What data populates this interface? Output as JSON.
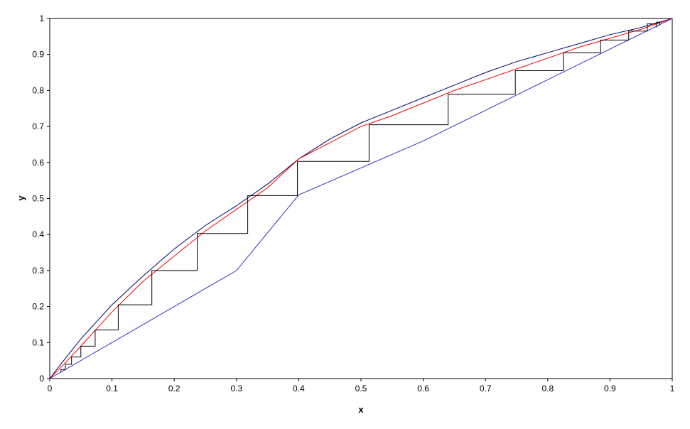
{
  "chart_data": {
    "type": "line",
    "title": "",
    "xlabel": "x",
    "ylabel": "y",
    "xlim": [
      0,
      1
    ],
    "ylim": [
      0,
      1
    ],
    "xticks": [
      "0",
      "0.1",
      "0.2",
      "0.3",
      "0.4",
      "0.5",
      "0.6",
      "0.7",
      "0.8",
      "0.9",
      "1"
    ],
    "yticks": [
      "0",
      "0.1",
      "0.2",
      "0.3",
      "0.4",
      "0.5",
      "0.6",
      "0.7",
      "0.8",
      "0.9",
      "1"
    ],
    "grid": false,
    "legend": "none",
    "series": [
      {
        "color": "#000066",
        "points": [
          [
            0,
            0
          ],
          [
            0.02,
            0.045
          ],
          [
            0.05,
            0.11
          ],
          [
            0.1,
            0.205
          ],
          [
            0.15,
            0.285
          ],
          [
            0.2,
            0.36
          ],
          [
            0.25,
            0.425
          ],
          [
            0.3,
            0.48
          ],
          [
            0.35,
            0.54
          ],
          [
            0.4,
            0.61
          ],
          [
            0.45,
            0.665
          ],
          [
            0.5,
            0.71
          ],
          [
            0.55,
            0.745
          ],
          [
            0.6,
            0.78
          ],
          [
            0.65,
            0.815
          ],
          [
            0.7,
            0.85
          ],
          [
            0.75,
            0.88
          ],
          [
            0.8,
            0.905
          ],
          [
            0.85,
            0.93
          ],
          [
            0.9,
            0.955
          ],
          [
            0.95,
            0.975
          ],
          [
            1,
            1
          ]
        ]
      },
      {
        "color": "#ff0000",
        "points": [
          [
            0,
            0
          ],
          [
            0.02,
            0.035
          ],
          [
            0.05,
            0.09
          ],
          [
            0.1,
            0.185
          ],
          [
            0.15,
            0.27
          ],
          [
            0.2,
            0.34
          ],
          [
            0.25,
            0.41
          ],
          [
            0.3,
            0.47
          ],
          [
            0.35,
            0.53
          ],
          [
            0.4,
            0.61
          ],
          [
            0.45,
            0.655
          ],
          [
            0.5,
            0.7
          ],
          [
            0.55,
            0.73
          ],
          [
            0.6,
            0.765
          ],
          [
            0.65,
            0.8
          ],
          [
            0.7,
            0.83
          ],
          [
            0.75,
            0.86
          ],
          [
            0.8,
            0.89
          ],
          [
            0.85,
            0.92
          ],
          [
            0.9,
            0.945
          ],
          [
            0.95,
            0.97
          ],
          [
            1,
            1
          ]
        ]
      },
      {
        "color": "#3333cc",
        "points": [
          [
            0,
            0
          ],
          [
            0.02,
            0.02
          ],
          [
            0.05,
            0.05
          ],
          [
            0.1,
            0.1
          ],
          [
            0.2,
            0.2
          ],
          [
            0.3,
            0.3
          ],
          [
            0.4,
            0.51
          ],
          [
            0.6,
            0.66
          ],
          [
            0.8,
            0.83
          ],
          [
            1,
            1
          ]
        ]
      },
      {
        "color": "#000000",
        "points": [
          [
            0.98,
            0.98
          ],
          [
            0.98,
            0.99
          ],
          [
            0.975,
            0.99
          ],
          [
            0.975,
            0.975
          ],
          [
            0.975,
            0.985
          ],
          [
            0.96,
            0.985
          ],
          [
            0.96,
            0.965
          ],
          [
            0.93,
            0.965
          ],
          [
            0.93,
            0.94
          ],
          [
            0.885,
            0.94
          ],
          [
            0.885,
            0.905
          ],
          [
            0.825,
            0.905
          ],
          [
            0.825,
            0.855
          ],
          [
            0.748,
            0.855
          ],
          [
            0.748,
            0.79
          ],
          [
            0.64,
            0.79
          ],
          [
            0.64,
            0.705
          ],
          [
            0.513,
            0.705
          ],
          [
            0.513,
            0.603
          ],
          [
            0.398,
            0.603
          ],
          [
            0.398,
            0.508
          ],
          [
            0.318,
            0.508
          ],
          [
            0.318,
            0.403
          ],
          [
            0.237,
            0.403
          ],
          [
            0.237,
            0.3
          ],
          [
            0.164,
            0.3
          ],
          [
            0.164,
            0.205
          ],
          [
            0.11,
            0.205
          ],
          [
            0.11,
            0.135
          ],
          [
            0.073,
            0.135
          ],
          [
            0.073,
            0.09
          ],
          [
            0.05,
            0.09
          ],
          [
            0.05,
            0.06
          ],
          [
            0.035,
            0.06
          ],
          [
            0.035,
            0.04
          ],
          [
            0.025,
            0.04
          ],
          [
            0.025,
            0.025
          ],
          [
            0.018,
            0.025
          ],
          [
            0.018,
            0.018
          ]
        ]
      }
    ]
  }
}
